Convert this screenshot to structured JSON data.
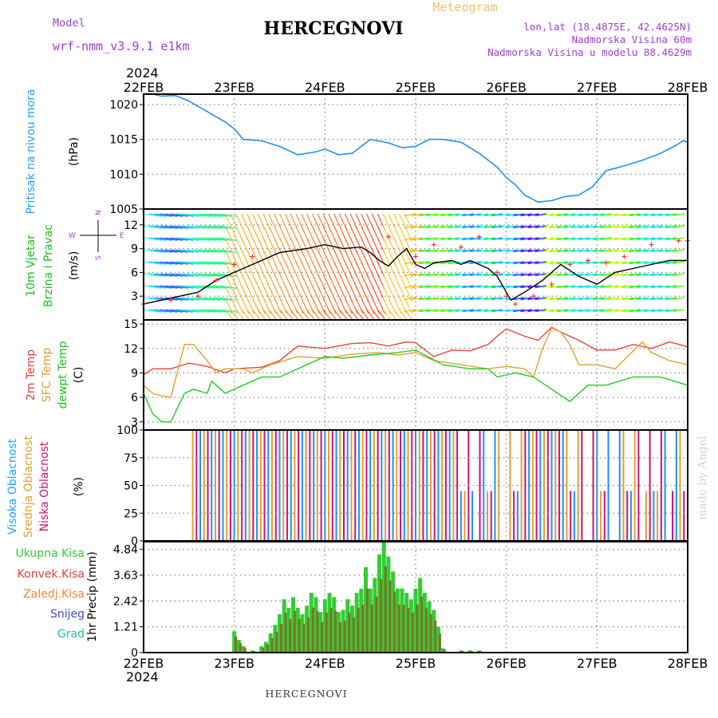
{
  "header": {
    "model_label": "Model",
    "model_name": "wrf-nmm_v3.9.1 e1km",
    "station": "HERCEGNOVI",
    "product": "Meteogram",
    "lonlat": "lon,lat (18.4875E, 42.4625N)",
    "elevation": "Nadmorska Visina 60m",
    "model_elevation": "Nadmorska Visina u modelu 88.4629m",
    "footer": "HERCEGNOVI",
    "watermark": "made by Angel",
    "year_top": "2024",
    "year_bottom": "2024"
  },
  "colors": {
    "pressure": "#1e90ff",
    "wind_speed": "#000000",
    "gust": "#ff3030",
    "t2m": "#e8443a",
    "tsfc": "#e0a030",
    "dewpoint": "#22cc22",
    "cloud_high": "#1e90ff",
    "cloud_mid": "#e0a030",
    "cloud_low": "#cc1177",
    "precip_total": "#33cc33",
    "precip_conv": "#cc2222",
    "precip_snow": "#4444dd",
    "precip_hail": "#22bbaa"
  },
  "chart_data": {
    "type": "line",
    "x_axis": {
      "dates": [
        "22FEB",
        "23FEB",
        "24FEB",
        "25FEB",
        "26FEB",
        "27FEB",
        "28FEB"
      ],
      "range_days": [
        0,
        6
      ]
    },
    "panels": [
      {
        "id": "pressure",
        "type": "line",
        "ylabel": "Pritisak na nivou mora",
        "unit": "(hPa)",
        "yticks": [
          1005,
          1010,
          1015,
          1020
        ],
        "ylim": [
          1005,
          1021.5
        ],
        "series": [
          {
            "color_key": "pressure",
            "x": [
              0,
              0.1,
              0.2,
              0.35,
              0.5,
              0.7,
              0.9,
              1.0,
              1.1,
              1.3,
              1.5,
              1.7,
              1.9,
              2.0,
              2.15,
              2.3,
              2.5,
              2.7,
              2.85,
              3.0,
              3.15,
              3.3,
              3.5,
              3.7,
              3.9,
              4.0,
              4.1,
              4.2,
              4.35,
              4.5,
              4.65,
              4.8,
              4.95,
              5.1,
              5.3,
              5.5,
              5.7,
              5.85,
              5.95,
              6.0
            ],
            "y": [
              1022.2,
              1021.5,
              1021.2,
              1021.3,
              1020.5,
              1019.0,
              1017.5,
              1016.5,
              1015.0,
              1014.8,
              1014.0,
              1012.8,
              1013.2,
              1013.6,
              1012.8,
              1013.0,
              1015.0,
              1014.5,
              1013.8,
              1014.0,
              1015.0,
              1015.0,
              1014.6,
              1013.0,
              1011.0,
              1009.5,
              1008.5,
              1007.0,
              1006.0,
              1006.2,
              1006.8,
              1007.0,
              1008.2,
              1010.5,
              1011.2,
              1012.0,
              1013.0,
              1014.0,
              1014.8,
              1014.6
            ]
          }
        ]
      },
      {
        "id": "wind",
        "type": "line",
        "ylabel": "10m Vjetar",
        "ylabel2": "Brzina i Pravac",
        "unit": "(m/s)",
        "compass": {
          "north": "N",
          "east": "E",
          "south": "S",
          "west": "W"
        },
        "yticks": [
          3,
          6,
          9,
          12
        ],
        "ylim": [
          0,
          14
        ],
        "series": [
          {
            "name": "speed",
            "color_key": "wind_speed",
            "x": [
              0,
              0.2,
              0.4,
              0.6,
              0.8,
              1.0,
              1.2,
              1.5,
              1.8,
              2.0,
              2.2,
              2.4,
              2.5,
              2.6,
              2.7,
              2.8,
              2.9,
              3.0,
              3.1,
              3.2,
              3.4,
              3.5,
              3.6,
              3.7,
              3.8,
              3.9,
              4.0,
              4.05,
              4.2,
              4.4,
              4.6,
              4.8,
              5.0,
              5.2,
              5.4,
              5.6,
              5.8,
              6.0
            ],
            "y": [
              2.0,
              2.5,
              3.0,
              3.5,
              5.0,
              6.0,
              7.0,
              8.5,
              9.0,
              9.5,
              9.0,
              9.2,
              8.5,
              7.5,
              6.8,
              8.0,
              9.0,
              7.0,
              6.5,
              7.2,
              7.5,
              7.0,
              7.5,
              7.0,
              6.5,
              5.5,
              3.5,
              2.5,
              3.5,
              5.0,
              7.0,
              5.5,
              4.5,
              6.0,
              6.5,
              7.0,
              7.5,
              7.5
            ]
          },
          {
            "name": "gust",
            "color_key": "gust",
            "x": [
              0,
              0.3,
              0.6,
              0.8,
              1.0,
              1.2,
              2.7,
              3.0,
              3.2,
              3.5,
              3.7,
              3.9,
              4.0,
              4.1,
              4.3,
              4.5,
              4.7,
              4.9,
              5.1,
              5.3,
              5.6,
              5.9,
              6.0
            ],
            "y": [
              2.0,
              2.5,
              3.0,
              5.0,
              7.0,
              8.0,
              10.5,
              8.0,
              9.5,
              9.2,
              10.5,
              6.0,
              3.0,
              2.0,
              3.0,
              4.5,
              7.0,
              7.5,
              7.2,
              8.0,
              9.5,
              10.0,
              10.0
            ]
          }
        ]
      },
      {
        "id": "temperature",
        "type": "line",
        "ylabel": "2m Temp",
        "ylabel2": "SFC Temp",
        "ylabel3": "dewpt Temp",
        "unit": "(C)",
        "yticks": [
          3,
          6,
          9,
          12,
          15
        ],
        "ylim": [
          2,
          15.5
        ],
        "series": [
          {
            "name": "2m Temp",
            "color_key": "t2m",
            "x": [
              0,
              0.1,
              0.3,
              0.5,
              0.7,
              0.9,
              1.0,
              1.3,
              1.5,
              1.7,
              2.0,
              2.3,
              2.5,
              2.7,
              2.9,
              3.0,
              3.2,
              3.4,
              3.6,
              3.8,
              3.9,
              4.0,
              4.2,
              4.35,
              4.5,
              4.6,
              4.8,
              5.0,
              5.2,
              5.4,
              5.6,
              5.8,
              6.0
            ],
            "y": [
              8.8,
              9.5,
              9.5,
              10.2,
              9.8,
              9.0,
              9.5,
              9.7,
              10.5,
              12.3,
              12.0,
              12.6,
              12.7,
              12.3,
              12.8,
              12.7,
              11.0,
              11.8,
              11.7,
              12.5,
              13.5,
              14.4,
              13.5,
              13.0,
              14.6,
              14.0,
              13.0,
              11.8,
              11.8,
              12.5,
              12.0,
              12.8,
              12.2
            ]
          },
          {
            "name": "SFC Temp",
            "color_key": "tsfc",
            "x": [
              0,
              0.1,
              0.2,
              0.3,
              0.45,
              0.55,
              0.7,
              0.8,
              0.9,
              1.1,
              1.2,
              1.4,
              1.7,
              2.0,
              2.3,
              2.6,
              2.8,
              3.0,
              3.2,
              3.5,
              3.8,
              4.0,
              4.2,
              4.3,
              4.4,
              4.5,
              4.6,
              4.7,
              4.8,
              5.0,
              5.2,
              5.5,
              5.6,
              5.8,
              6.0
            ],
            "y": [
              7.5,
              6.5,
              6.2,
              6.0,
              12.5,
              12.5,
              10.5,
              9.0,
              9.5,
              9.5,
              9.0,
              10.0,
              11.0,
              10.8,
              11.3,
              11.5,
              11.2,
              11.5,
              10.5,
              10.0,
              9.5,
              9.8,
              9.5,
              8.5,
              12.0,
              14.5,
              14.0,
              12.5,
              10.0,
              10.0,
              9.5,
              12.8,
              11.5,
              10.5,
              10.0
            ]
          },
          {
            "name": "dewpt Temp",
            "color_key": "dewpoint",
            "x": [
              0,
              0.1,
              0.2,
              0.3,
              0.45,
              0.55,
              0.7,
              0.75,
              0.9,
              1.1,
              1.3,
              1.5,
              1.7,
              2.0,
              2.2,
              2.5,
              2.8,
              3.0,
              3.3,
              3.6,
              3.8,
              3.9,
              4.1,
              4.3,
              4.5,
              4.7,
              4.9,
              5.1,
              5.4,
              5.7,
              6.0
            ],
            "y": [
              6.5,
              4.0,
              3.0,
              3.0,
              6.5,
              7.0,
              6.5,
              8.0,
              6.5,
              7.5,
              8.5,
              8.5,
              9.5,
              11.0,
              10.8,
              11.2,
              11.5,
              11.8,
              10.0,
              9.5,
              9.5,
              8.5,
              9.0,
              8.5,
              7.0,
              5.5,
              7.5,
              7.5,
              8.5,
              8.5,
              7.5
            ]
          }
        ]
      },
      {
        "id": "cloud",
        "type": "bar",
        "ylabel": "Visoka Oblacnost",
        "ylabel2": "Srednja Oblacnost",
        "ylabel3": "Niska Oblacnost",
        "unit": "(%)",
        "yticks": [
          0,
          25,
          50,
          75,
          100
        ],
        "ylim": [
          0,
          100
        ],
        "note": "hourly cloud-cover bars: 100% from ~22FEB 12h to ~25FEB 12h, partial/intermittent afterward"
      },
      {
        "id": "precip",
        "type": "bar",
        "legend": [
          "Ukupna Kisa",
          "Konvek.Kisa",
          "Zaledj.Kisa",
          "Snijeg",
          "Grad"
        ],
        "ylabel": "1hr Precip (mm)",
        "yticks": [
          0,
          1.21,
          2.42,
          3.63,
          4.84
        ],
        "ylim": [
          0,
          5.2
        ],
        "series": [
          {
            "name": "Ukupna Kisa",
            "color_key": "precip_total",
            "x": [
              1.0,
              1.05,
              1.1,
              1.2,
              1.3,
              1.35,
              1.4,
              1.45,
              1.5,
              1.55,
              1.6,
              1.65,
              1.7,
              1.75,
              1.8,
              1.85,
              1.9,
              1.95,
              2.0,
              2.05,
              2.1,
              2.15,
              2.2,
              2.25,
              2.3,
              2.35,
              2.4,
              2.45,
              2.5,
              2.55,
              2.6,
              2.65,
              2.7,
              2.75,
              2.8,
              2.85,
              2.9,
              2.95,
              3.0,
              3.05,
              3.1,
              3.15,
              3.2,
              3.25,
              3.3,
              3.5,
              3.6,
              3.7
            ],
            "y": [
              1.0,
              0.6,
              0.3,
              0.1,
              0.3,
              0.5,
              0.9,
              1.3,
              1.8,
              2.5,
              2.1,
              2.6,
              2.1,
              1.8,
              2.2,
              2.8,
              2.6,
              1.9,
              2.5,
              2.8,
              2.6,
              1.9,
              2.0,
              2.5,
              2.2,
              2.8,
              3.0,
              4.0,
              3.0,
              3.5,
              4.6,
              5.4,
              4.5,
              3.8,
              3.0,
              3.0,
              2.8,
              2.5,
              3.0,
              3.5,
              2.8,
              2.4,
              2.0,
              1.2,
              0.2,
              0.1,
              0.1,
              0.1
            ]
          }
        ]
      }
    ]
  }
}
